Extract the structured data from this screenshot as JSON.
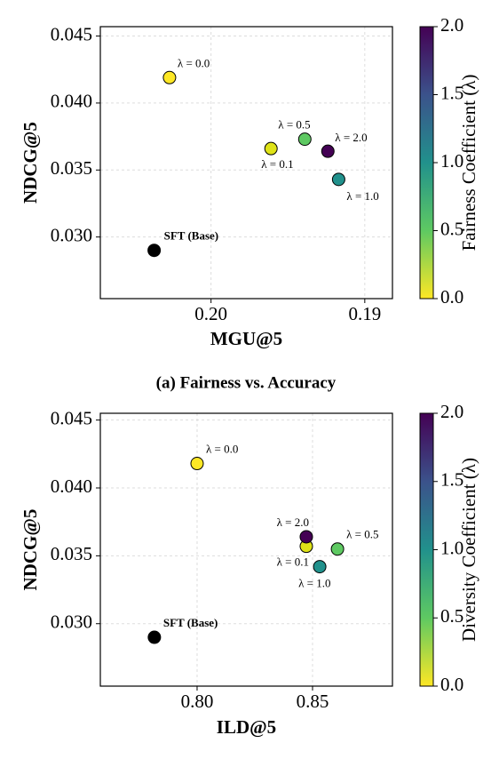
{
  "chart_data": [
    {
      "type": "scatter",
      "caption": "(a) Fairness vs. Accuracy",
      "x_label": "MGU@5",
      "y_label": "NDCG@5",
      "x": [
        0.2027,
        0.1961,
        0.1939,
        0.1917,
        0.1924,
        0.2037
      ],
      "values": [
        0.0419,
        0.0366,
        0.0373,
        0.0343,
        0.0364,
        0.029
      ],
      "point_labels": [
        "λ = 0.0",
        "λ = 0.1",
        "λ = 0.5",
        "λ = 1.0",
        "λ = 2.0",
        "SFT (Base)"
      ],
      "colors": [
        "#fde725",
        "#dfe318",
        "#5ec962",
        "#21918c",
        "#440154",
        "#000000"
      ],
      "xlim": [
        0.2072,
        0.1882
      ],
      "xticks": [
        {
          "value": 0.2,
          "label": "0.20"
        },
        0.19
      ],
      "ylim": [
        0.0254,
        0.0457
      ],
      "yticks": [
        {
          "value": 0.03,
          "label": "0.030"
        },
        0.035,
        {
          "value": 0.04,
          "label": "0.040"
        },
        0.045
      ],
      "grid": true,
      "colorbar_label": "Fairness Coefficient (λ)",
      "clim": [
        0,
        2
      ],
      "cticks": [
        {
          "value": 0,
          "label": "0.0"
        },
        0.5,
        {
          "value": 1,
          "label": "1.0"
        },
        1.5,
        {
          "value": 2,
          "label": "2.0"
        }
      ],
      "colormap": [
        "#fde725",
        "#5ec962",
        "#21918c",
        "#3b528b",
        "#440154"
      ]
    },
    {
      "type": "scatter",
      "x_label": "ILD@5",
      "y_label": "NDCG@5",
      "x": [
        0.8,
        0.8473,
        0.8608,
        0.8531,
        0.8473,
        0.7815
      ],
      "values": [
        0.0418,
        0.0357,
        0.0355,
        0.0342,
        0.0364,
        0.029
      ],
      "point_labels": [
        "λ = 0.0",
        "λ = 0.1",
        "λ = 0.5",
        "λ = 1.0",
        "λ = 2.0",
        "SFT (Base)"
      ],
      "colors": [
        "#fde725",
        "#dfe318",
        "#5ec962",
        "#21918c",
        "#440154",
        "#000000"
      ],
      "xlim": [
        0.7581,
        0.8846
      ],
      "xticks": [
        {
          "value": 0.8,
          "label": "0.80"
        },
        0.85
      ],
      "ylim": [
        0.0254,
        0.0455
      ],
      "yticks": [
        {
          "value": 0.03,
          "label": "0.030"
        },
        0.035,
        {
          "value": 0.04,
          "label": "0.040"
        },
        0.045
      ],
      "grid": true,
      "colorbar_label": "Diversity Coefficient (λ)",
      "clim": [
        0,
        2
      ],
      "cticks": [
        {
          "value": 0,
          "label": "0.0"
        },
        0.5,
        {
          "value": 1,
          "label": "1.0"
        },
        1.5,
        {
          "value": 2,
          "label": "2.0"
        }
      ],
      "colormap": [
        "#fde725",
        "#5ec962",
        "#21918c",
        "#3b528b",
        "#440154"
      ]
    }
  ]
}
